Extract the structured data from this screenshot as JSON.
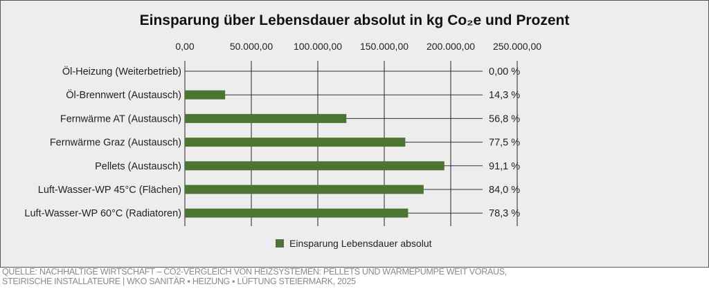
{
  "chart_data": {
    "type": "bar",
    "orientation": "horizontal",
    "title": "Einsparung über Lebensdauer absolut in kg Co₂e und Prozent",
    "categories": [
      "Öl-Heizung (Weiterbetrieb)",
      "Öl-Brennwert (Austausch)",
      "Fernwärme AT (Austausch)",
      "Fernwärme Graz (Austausch)",
      "Pellets (Austausch)",
      "Luft-Wasser-WP 45°C (Flächen)",
      "Luft-Wasser-WP 60°C (Radiatoren)"
    ],
    "series": [
      {
        "name": "Einsparung Lebensdauer absolut",
        "color": "#4b7530",
        "values": [
          0,
          30300,
          121500,
          165800,
          195200,
          179600,
          167900
        ]
      }
    ],
    "percent_labels": [
      "0,00 %",
      "14,3 %",
      "56,8 %",
      "77,5 %",
      "91,1 %",
      "84,0 %",
      "78,3 %"
    ],
    "xlim": [
      0,
      250000
    ],
    "xticks": [
      0,
      50000,
      100000,
      150000,
      200000,
      250000
    ],
    "xtick_labels": [
      "0,00",
      "50.000,00",
      "100.000,00",
      "150.000,00",
      "200.000,00",
      "250.000,00"
    ],
    "grid": true,
    "legend_position": "bottom-center"
  },
  "source": {
    "line1": "QUELLE: NACHHALTIGE WIRTSCHAFT – CO2-VERGLEICH VON HEIZSYSTEMEN: PELLETS UND WÄRMEPUMPE WEIT VORAUS,",
    "line2": "STEIRISCHE INSTALLATEURE | WKO SANITÄR ▪ HEIZUNG ▪ LÜFTUNG STEIERMARK, 2025"
  }
}
